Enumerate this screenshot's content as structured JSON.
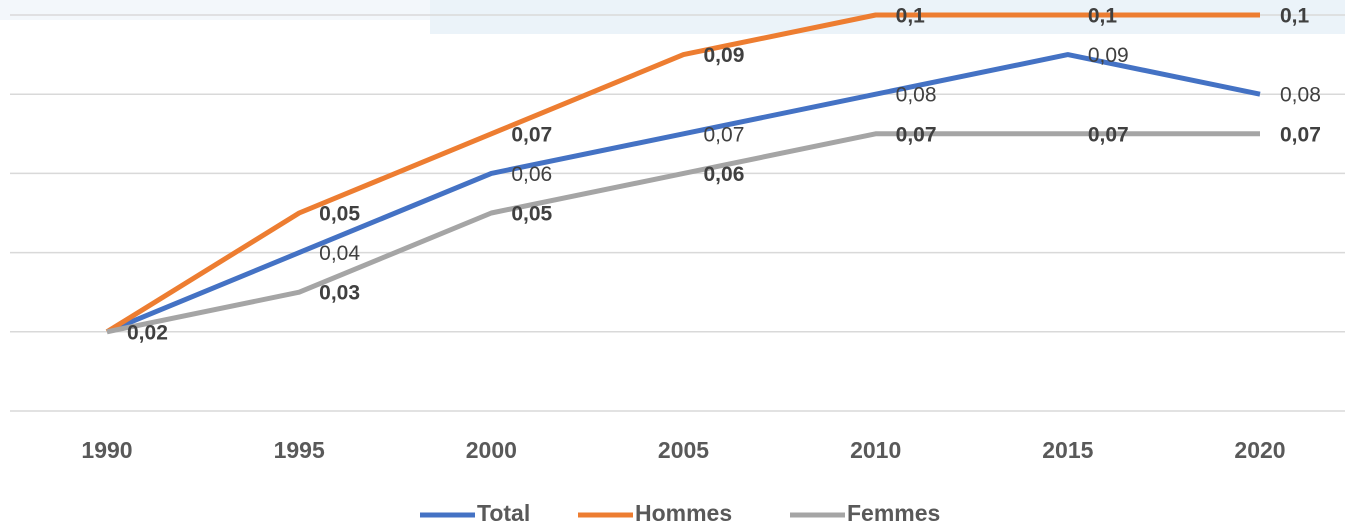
{
  "chart_data": {
    "type": "line",
    "categories": [
      "1990",
      "1995",
      "2000",
      "2005",
      "2010",
      "2015",
      "2020"
    ],
    "series": [
      {
        "name": "Total",
        "color": "#4472c4",
        "label_bold": false,
        "values": [
          0.02,
          0.04,
          0.06,
          0.07,
          0.08,
          0.09,
          0.08
        ],
        "value_labels": [
          null,
          "0,04",
          "0,06",
          "0,07",
          "0,08",
          "0,09",
          "0,08"
        ]
      },
      {
        "name": "Hommes",
        "color": "#ed7d31",
        "label_bold": true,
        "values": [
          0.02,
          0.05,
          0.07,
          0.09,
          0.1,
          0.1,
          0.1
        ],
        "value_labels": [
          null,
          "0,05",
          "0,07",
          "0,09",
          "0,1",
          "0,1",
          "0,1"
        ]
      },
      {
        "name": "Femmes",
        "color": "#a5a5a5",
        "label_bold": true,
        "values": [
          0.02,
          0.03,
          0.05,
          0.06,
          0.07,
          0.07,
          0.07
        ],
        "value_labels": [
          "0,02",
          "0,03",
          "0,05",
          "0,06",
          "0,07",
          "0,07",
          "0,07"
        ]
      }
    ],
    "ylim": [
      0,
      0.1
    ],
    "yticks": [
      0,
      0.02,
      0.04,
      0.06,
      0.08,
      0.1
    ],
    "grid": true
  }
}
